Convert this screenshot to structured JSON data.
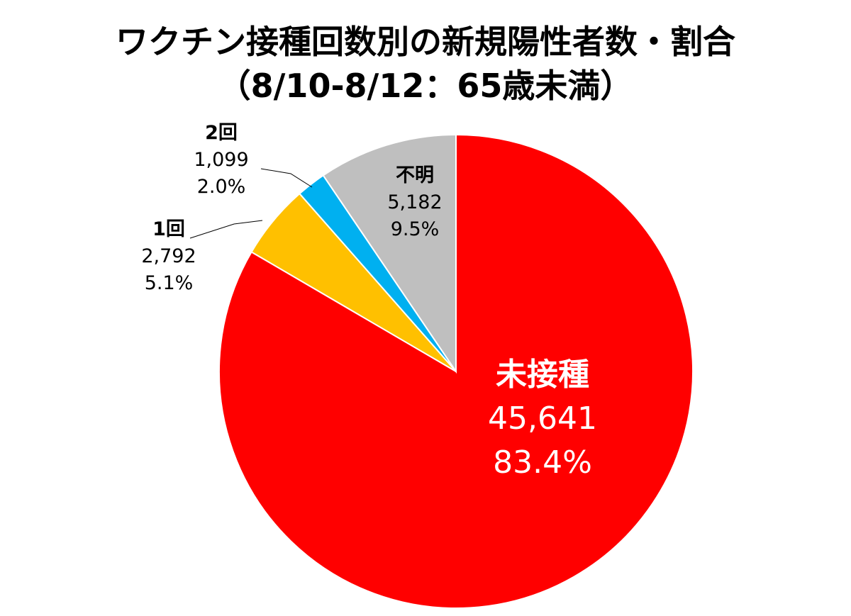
{
  "chart_data": {
    "type": "pie",
    "title": "ワクチン接種回数別の新規陽性者数・割合",
    "subtitle": "（8/10-8/12：65歳未満）",
    "slices": [
      {
        "label": "未接種",
        "value": 45641,
        "value_text": "45,641",
        "percent_text": "83.4%",
        "color": "#ff0000",
        "label_color": "#ffffff"
      },
      {
        "label": "1回",
        "value": 2792,
        "value_text": "2,792",
        "percent_text": "5.1%",
        "color": "#ffc000",
        "label_color": "#000000"
      },
      {
        "label": "2回",
        "value": 1099,
        "value_text": "1,099",
        "percent_text": "2.0%",
        "color": "#00b0f0",
        "label_color": "#000000"
      },
      {
        "label": "不明",
        "value": 5182,
        "value_text": "5,182",
        "percent_text": "9.5%",
        "color": "#bfbfbf",
        "label_color": "#000000"
      }
    ],
    "start_angle": "12 o'clock",
    "direction": "clockwise",
    "legend": "none"
  }
}
